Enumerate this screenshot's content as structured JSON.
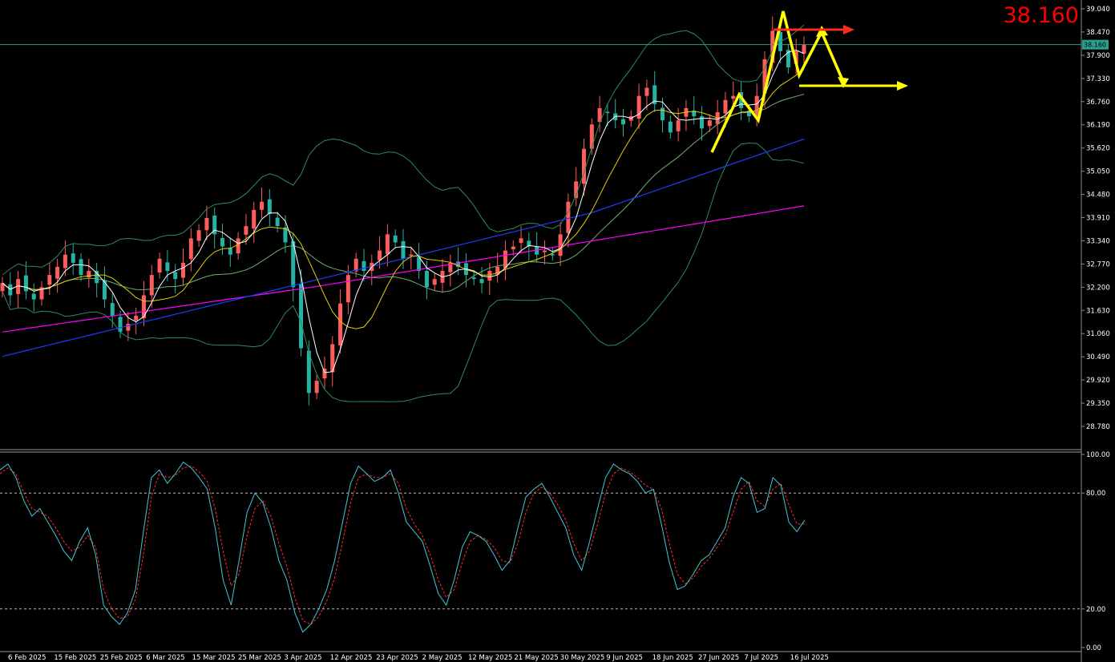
{
  "chart_data": [
    {
      "type": "candlestick",
      "price_label": "38.160",
      "current_price": 38.16,
      "ylim": [
        28.4,
        39.3
      ],
      "y_ticks": [
        "39.040",
        "38.470",
        "37.900",
        "37.330",
        "36.760",
        "36.190",
        "35.620",
        "35.050",
        "34.480",
        "33.910",
        "33.340",
        "32.770",
        "32.200",
        "31.630",
        "31.060",
        "30.490",
        "29.920",
        "29.350",
        "28.780"
      ],
      "x_ticks": [
        "6 Feb 2025",
        "15 Feb 2025",
        "25 Feb 2025",
        "6 Mar 2025",
        "15 Mar 2025",
        "25 Mar 2025",
        "3 Apr 2025",
        "12 Apr 2025",
        "23 Apr 2025",
        "2 May 2025",
        "12 May 2025",
        "21 May 2025",
        "30 May 2025",
        "9 Jun 2025",
        "18 Jun 2025",
        "27 Jun 2025",
        "7 Jul 2025",
        "16 Jul 2025"
      ],
      "closes": [
        32.3,
        32.0,
        32.4,
        32.1,
        31.9,
        32.2,
        32.5,
        32.7,
        33.0,
        32.8,
        32.5,
        32.6,
        32.3,
        31.9,
        31.5,
        31.1,
        31.3,
        31.5,
        32.0,
        32.5,
        32.9,
        32.6,
        32.4,
        32.8,
        33.4,
        33.6,
        33.9,
        33.5,
        33.2,
        33.0,
        33.4,
        33.7,
        34.1,
        34.3,
        34.0,
        33.7,
        33.3,
        32.2,
        30.7,
        29.6,
        29.9,
        30.2,
        30.8,
        31.8,
        32.5,
        32.9,
        32.6,
        32.8,
        33.1,
        33.5,
        33.3,
        32.9,
        33.0,
        32.6,
        32.2,
        32.4,
        32.6,
        32.8,
        32.7,
        32.5,
        32.4,
        32.3,
        32.6,
        32.7,
        33.1,
        33.2,
        33.4,
        33.2,
        33.0,
        33.1,
        33.0,
        33.5,
        34.3,
        34.8,
        35.6,
        36.2,
        36.6,
        36.5,
        36.3,
        36.2,
        36.4,
        36.9,
        37.1,
        36.7,
        36.3,
        36.0,
        36.3,
        36.6,
        36.4,
        36.1,
        36.3,
        36.5,
        36.8,
        36.9,
        36.6,
        36.4,
        36.9,
        37.8,
        38.5,
        38.0,
        37.6,
        38.0,
        38.16
      ],
      "indicators": [
        "sma-white",
        "sma-yellow",
        "sma-blue",
        "sma-magenta",
        "bollinger-bands"
      ],
      "annotations": [
        "yellow zigzag forecast",
        "red horizontal arrow at top",
        "yellow horizontal arrow at support"
      ]
    },
    {
      "type": "line",
      "y_ticks": [
        "100.00",
        "80.00",
        "20.00",
        "0.00"
      ],
      "ylim": [
        0,
        100
      ],
      "levels": [
        80,
        20
      ],
      "main": [
        92,
        95,
        88,
        76,
        68,
        72,
        65,
        58,
        50,
        45,
        55,
        62,
        48,
        22,
        16,
        12,
        18,
        30,
        60,
        88,
        92,
        85,
        90,
        96,
        93,
        88,
        82,
        62,
        35,
        22,
        45,
        70,
        80,
        75,
        62,
        45,
        35,
        18,
        8,
        12,
        20,
        30,
        45,
        65,
        85,
        94,
        90,
        86,
        88,
        92,
        80,
        65,
        60,
        55,
        42,
        28,
        22,
        35,
        52,
        60,
        58,
        55,
        48,
        40,
        45,
        62,
        78,
        82,
        85,
        78,
        70,
        62,
        48,
        40,
        55,
        72,
        88,
        95,
        92,
        90,
        86,
        80,
        82,
        64,
        44,
        30,
        32,
        38,
        45,
        48,
        55,
        62,
        78,
        88,
        85,
        70,
        72,
        88,
        84,
        65,
        60,
        66
      ],
      "signal": [
        90,
        93,
        90,
        80,
        72,
        70,
        68,
        62,
        55,
        50,
        52,
        58,
        52,
        30,
        20,
        15,
        16,
        25,
        48,
        78,
        90,
        88,
        89,
        93,
        94,
        91,
        86,
        72,
        50,
        32,
        38,
        58,
        72,
        76,
        68,
        54,
        42,
        26,
        14,
        12,
        16,
        24,
        36,
        55,
        75,
        88,
        90,
        88,
        88,
        90,
        85,
        72,
        64,
        58,
        48,
        35,
        26,
        30,
        44,
        55,
        58,
        56,
        52,
        45,
        44,
        54,
        70,
        80,
        83,
        80,
        74,
        66,
        54,
        45,
        50,
        64,
        80,
        90,
        93,
        91,
        88,
        84,
        82,
        72,
        54,
        38,
        33,
        36,
        42,
        46,
        52,
        58,
        70,
        82,
        86,
        76,
        73,
        82,
        85,
        74,
        64,
        64
      ]
    }
  ]
}
